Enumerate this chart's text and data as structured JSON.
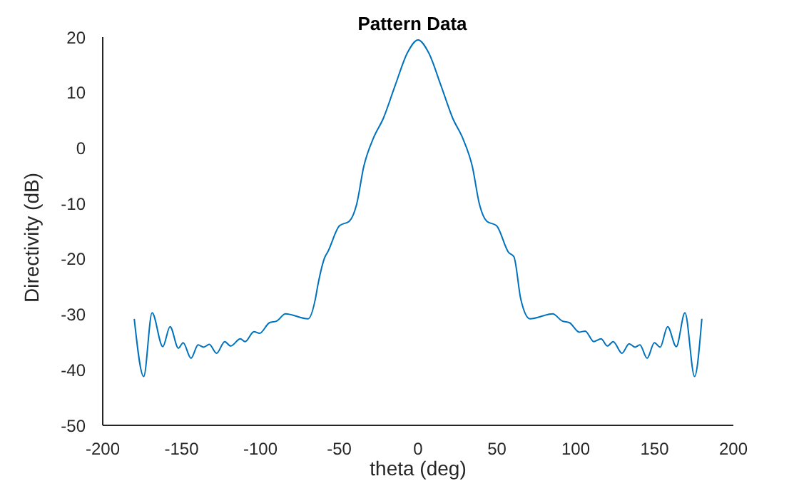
{
  "chart_data": {
    "type": "line",
    "title": "Pattern Data",
    "xlabel": "theta (deg)",
    "ylabel": "Directivity (dB)",
    "xlim": [
      -200,
      200
    ],
    "xticks": [
      -200,
      -150,
      -100,
      -50,
      0,
      50,
      100,
      150,
      200
    ],
    "ylim": [
      -50,
      20
    ],
    "yticks": [
      -50,
      -40,
      -30,
      -20,
      -10,
      0,
      10,
      20
    ],
    "grid": false,
    "legend": false,
    "marker": "none",
    "line_style": "solid",
    "series": [
      {
        "color": "#0072bd",
        "x": [
          -180,
          -174,
          -168.7,
          -161.9,
          -157.3,
          -152,
          -149,
          -144,
          -139.5,
          -136,
          -132.4,
          -127.8,
          -122.6,
          -118.9,
          -112.7,
          -109.7,
          -104.1,
          -100.5,
          -94.3,
          -89.7,
          -84.1,
          -69.8,
          -65.2,
          -63.6,
          -59,
          -57.4,
          -49.8,
          -43.6,
          -39,
          -34.4,
          -28.3,
          -22.1,
          -14.5,
          -6.7,
          0,
          6.7,
          14.5,
          22.1,
          28.3,
          34.4,
          39,
          43.6,
          49.8,
          57.4,
          60.8,
          65.2,
          71,
          85.4,
          91.5,
          96.1,
          102.3,
          106,
          111.5,
          116.1,
          120.1,
          123.8,
          129.3,
          133.9,
          137.6,
          140.7,
          145.3,
          149.9,
          153.6,
          158.3,
          163.8,
          169.3,
          175.4,
          180
        ],
        "values": [
          -30.8,
          -41.2,
          -29.7,
          -35.8,
          -32.2,
          -36.1,
          -35.1,
          -37.9,
          -35.5,
          -35.9,
          -35.4,
          -37,
          -34.9,
          -35.7,
          -34.4,
          -34.9,
          -33.1,
          -33.4,
          -31.5,
          -31.2,
          -29.9,
          -30.8,
          -27.3,
          -24.8,
          -19.6,
          -18.8,
          -14,
          -13.2,
          -10.2,
          -3.3,
          1.8,
          5.3,
          11.3,
          17.2,
          19.5,
          17.2,
          11.3,
          5.3,
          1.8,
          -3.3,
          -10.2,
          -13.2,
          -14,
          -18.8,
          -19.6,
          -27.3,
          -30.8,
          -29.9,
          -31.2,
          -31.5,
          -33.2,
          -33,
          -34.9,
          -34.4,
          -35.7,
          -34.9,
          -37,
          -35.3,
          -35.9,
          -35.5,
          -37.9,
          -35.1,
          -35.9,
          -32.2,
          -35.8,
          -29.7,
          -41.2,
          -30.8
        ]
      }
    ]
  }
}
